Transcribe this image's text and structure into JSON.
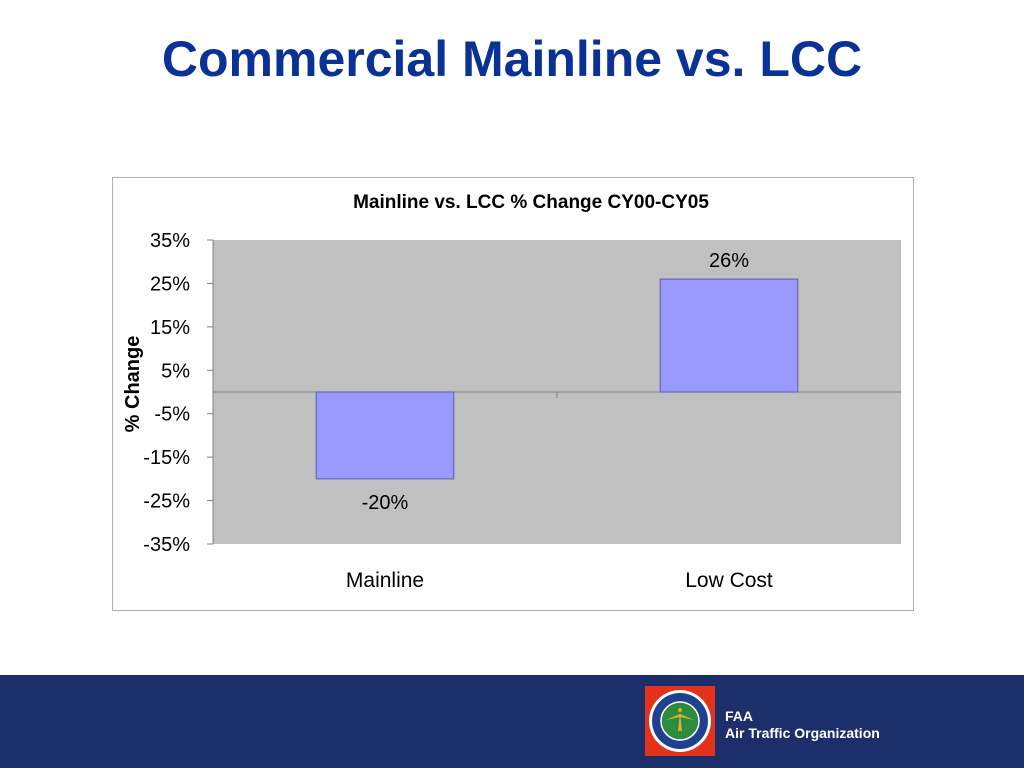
{
  "slide": {
    "title": "Commercial Mainline vs. LCC"
  },
  "chart_data": {
    "type": "bar",
    "title": "Mainline vs. LCC % Change CY00-CY05",
    "ylabel": "% Change",
    "xlabel": "",
    "categories": [
      "Mainline",
      "Low Cost"
    ],
    "values": [
      -20,
      26
    ],
    "data_labels": [
      "-20%",
      "26%"
    ],
    "ylim": [
      -35,
      35
    ],
    "yticks": [
      35,
      25,
      15,
      5,
      -5,
      -15,
      -25,
      -35
    ],
    "ytick_labels": [
      "35%",
      "25%",
      "15%",
      "5%",
      "-5%",
      "-15%",
      "-25%",
      "-35%"
    ],
    "grid": false,
    "legend": "none",
    "colors": {
      "bar": "#9999ff",
      "bar_border": "#5a5ab4",
      "plot_background": "#c0c0c0"
    }
  },
  "footer": {
    "org_line1": "FAA",
    "org_line2": "Air Traffic Organization",
    "logo_icon": "faa-seal-icon",
    "colors": {
      "bar": "#1c2f6b",
      "logo_background": "#e2321c"
    }
  }
}
